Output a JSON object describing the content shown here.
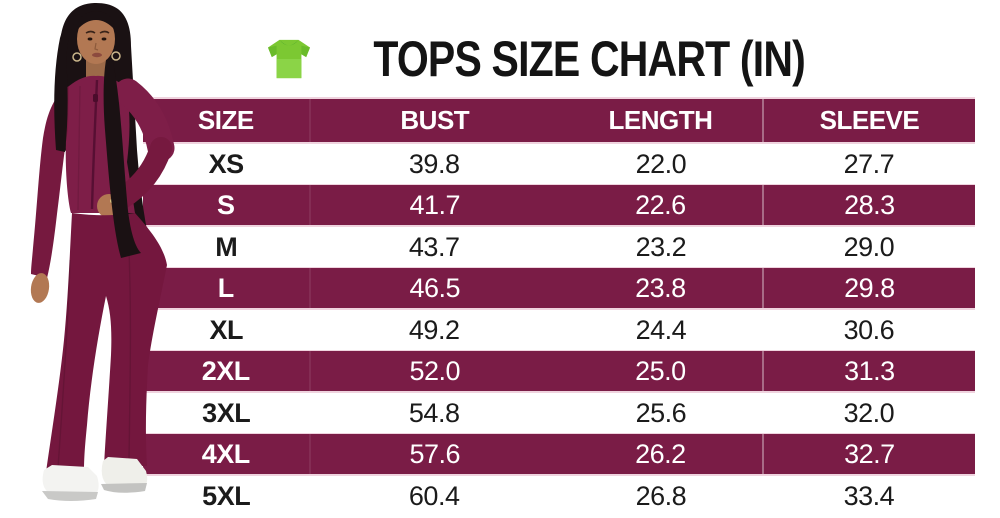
{
  "title": {
    "text": "TOPS SIZE CHART (IN)"
  },
  "icons": {
    "tshirt": "green-tshirt-icon"
  },
  "left_photo": {
    "description": "Woman with long dark hair wearing a maroon ribbed zip-up top, matching flared pants and white sneakers"
  },
  "colors": {
    "maroon_band": "#7A1C46",
    "band_border_pink": "#EFD3DE",
    "title_black": "#141414",
    "shirt_green": "#7CC832",
    "shirt_green_dark": "#3E9D2B",
    "outfit_maroon": "#7E1E48",
    "pants_maroon": "#74173E",
    "skin": "#B27853",
    "hair": "#1A1113",
    "sneaker_white": "#F3F3F1"
  },
  "chart_data": {
    "type": "table",
    "title": "TOPS SIZE CHART (IN)",
    "columns": [
      "SIZE",
      "BUST",
      "LENGTH",
      "SLEEVE"
    ],
    "rows": [
      [
        "XS",
        "39.8",
        "22.0",
        "27.7"
      ],
      [
        "S",
        "41.7",
        "22.6",
        "28.3"
      ],
      [
        "M",
        "43.7",
        "23.2",
        "29.0"
      ],
      [
        "L",
        "46.5",
        "23.8",
        "29.8"
      ],
      [
        "XL",
        "49.2",
        "24.4",
        "30.6"
      ],
      [
        "2XL",
        "52.0",
        "25.0",
        "31.3"
      ],
      [
        "3XL",
        "54.8",
        "25.6",
        "32.0"
      ],
      [
        "4XL",
        "57.6",
        "26.2",
        "32.7"
      ],
      [
        "5XL",
        "60.4",
        "26.8",
        "33.4"
      ]
    ],
    "layout": {
      "stripe_pattern": "alternate rows maroon starting with S",
      "header_background": "#7A1C46"
    }
  }
}
